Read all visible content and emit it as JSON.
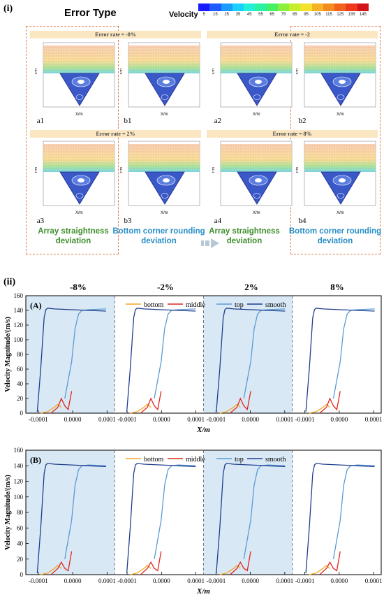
{
  "section1": {
    "label": "(i)",
    "title": "Error Type",
    "velocity_label": "Velocity",
    "velocity_ticks": [
      "5",
      "15",
      "25",
      "35",
      "45",
      "55",
      "65",
      "75",
      "85",
      "95",
      "105",
      "115",
      "125",
      "135",
      "145"
    ],
    "colors": {
      "dash": "#e07b4f",
      "errbar": "#fbe6c2",
      "green": "#3f8f2d",
      "blue": "#2a8fc7"
    },
    "error_rates": [
      "Error rate = -8%",
      "Error rate = -2",
      "Error rate = 2%",
      "Error rate = 8%"
    ],
    "panels": [
      "a1",
      "b1",
      "a2",
      "b2",
      "a3",
      "b3",
      "a4",
      "b4"
    ],
    "panel_axes": {
      "y": "Y/m",
      "x": "X/m"
    },
    "captions": [
      {
        "line1": "Array straightness",
        "line2": "deviation"
      },
      {
        "line1": "Bottom corner rounding",
        "line2": "deviation"
      },
      {
        "line1": "Array straightness",
        "line2": "deviation"
      },
      {
        "line1": "Bottom corner rounding",
        "line2": "deviation"
      }
    ]
  },
  "section2": {
    "label": "(ii)",
    "columns": [
      "-8%",
      "-2%",
      "2%",
      "8%"
    ],
    "chart_data": [
      {
        "type": "line",
        "panel_label": "(A)",
        "ylabel": "Velocity Magnitude/(m/s)",
        "xlabel": "X/m",
        "ylim": [
          0,
          160
        ],
        "yticks": [
          "0",
          "20",
          "40",
          "60",
          "80",
          "100",
          "120",
          "140",
          "160"
        ],
        "xticks": [
          "-0.0001",
          "0.0000",
          "0.0001"
        ],
        "legend": [
          "bottom",
          "middle",
          "top",
          "smooth"
        ],
        "colors": {
          "bottom": "#f5a623",
          "middle": "#e0261c",
          "top": "#5b9bd5",
          "smooth": "#1f3e8c"
        },
        "series": [
          {
            "name": "smooth",
            "x": [
              -0.0001,
              -9e-05,
              -8e-05,
              -7.5e-05,
              -7e-05,
              -5e-05,
              0,
              5e-05,
              0.0001
            ],
            "values": [
              2,
              60,
              130,
              141,
              143,
              142,
              141,
              140,
              139
            ]
          },
          {
            "name": "top",
            "x": [
              -2e-05,
              0,
              1e-05,
              2e-05,
              3e-05,
              5e-05,
              0.0001
            ],
            "values": [
              20,
              70,
              115,
              135,
              140,
              141,
              142
            ]
          },
          {
            "name": "middle",
            "x": [
              -6e-05,
              -4e-05,
              -3e-05,
              -2e-05,
              -1e-05,
              0
            ],
            "values": [
              0,
              8,
              20,
              10,
              5,
              30
            ]
          },
          {
            "name": "bottom",
            "x": [
              -9e-05,
              -7e-05,
              -5e-05,
              -4e-05,
              -3e-05
            ],
            "values": [
              0,
              2,
              8,
              12,
              8
            ]
          }
        ]
      },
      {
        "type": "line",
        "panel_label": "(B)",
        "ylabel": "Velocity Magnitude/(m/s)",
        "xlabel": "X/m",
        "ylim": [
          0,
          160
        ],
        "yticks": [
          "0",
          "20",
          "40",
          "60",
          "80",
          "100",
          "120",
          "140",
          "160"
        ],
        "xticks": [
          "-0.0001",
          "0.0000",
          "0.0001"
        ],
        "legend": [
          "bottom",
          "middle",
          "top",
          "smooth"
        ],
        "colors": {
          "bottom": "#f5a623",
          "middle": "#e0261c",
          "top": "#5b9bd5",
          "smooth": "#1f3e8c"
        },
        "series": [
          {
            "name": "smooth",
            "x": [
              -0.0001,
              -9e-05,
              -8e-05,
              -7.5e-05,
              -7e-05,
              -5e-05,
              0,
              5e-05,
              0.0001
            ],
            "values": [
              2,
              60,
              130,
              141,
              143,
              142,
              141,
              140,
              139
            ]
          },
          {
            "name": "top",
            "x": [
              -2e-05,
              0,
              1e-05,
              2e-05,
              3e-05,
              5e-05,
              0.0001
            ],
            "values": [
              20,
              70,
              115,
              135,
              140,
              141,
              140
            ]
          },
          {
            "name": "middle",
            "x": [
              -6e-05,
              -4e-05,
              -3e-05,
              -2e-05,
              -1e-05,
              0
            ],
            "values": [
              0,
              8,
              16,
              8,
              5,
              30
            ]
          },
          {
            "name": "bottom",
            "x": [
              -9e-05,
              -7e-05,
              -5e-05,
              -4e-05,
              -3e-05
            ],
            "values": [
              0,
              2,
              8,
              12,
              8
            ]
          }
        ]
      }
    ]
  }
}
